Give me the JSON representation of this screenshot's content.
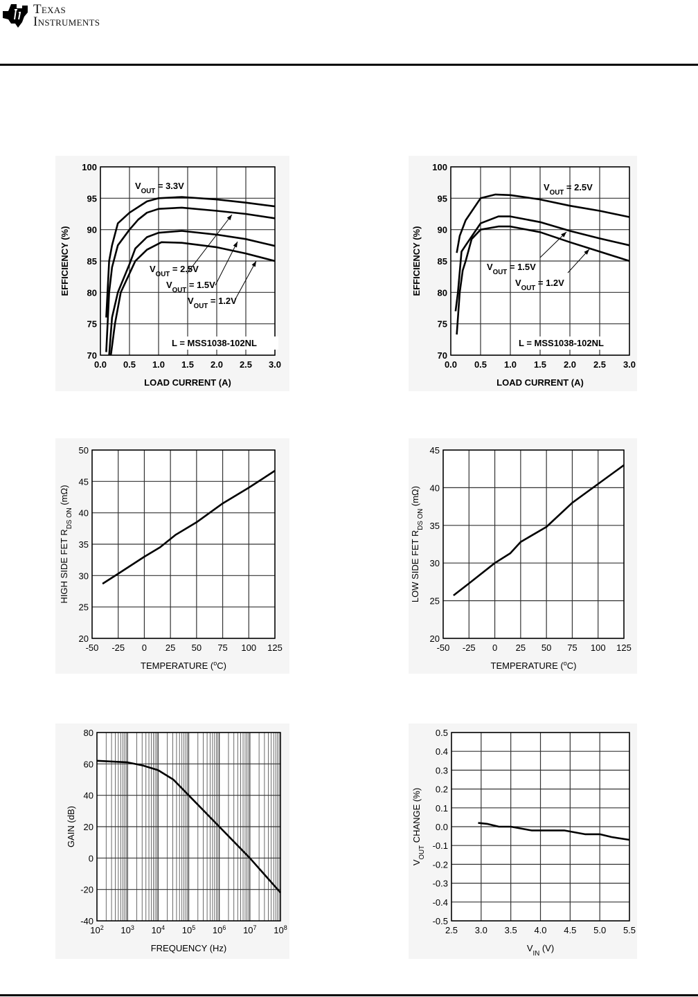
{
  "header": {
    "brand_line1": "Texas",
    "brand_line2": "Instruments"
  },
  "chart_data": [
    {
      "type": "line",
      "xlabel": "LOAD CURRENT (A)",
      "ylabel": "EFFICIENCY (%)",
      "xlim": [
        0,
        3.0
      ],
      "ylim": [
        70,
        100
      ],
      "xticks": [
        "0.0",
        "0.5",
        "1.0",
        "1.5",
        "2.0",
        "2.5",
        "3.0"
      ],
      "yticks": [
        "70",
        "75",
        "80",
        "85",
        "90",
        "95",
        "100"
      ],
      "grid": true,
      "note": "L = MSS1038-102NL",
      "series": [
        {
          "name": "VOUT = 3.3V",
          "label": {
            "v": "V",
            "sub": "OUT",
            "rest": " = 3.3V"
          },
          "x": [
            0.1,
            0.15,
            0.2,
            0.3,
            0.5,
            0.8,
            1.0,
            1.4,
            2.0,
            2.5,
            3.0
          ],
          "y": [
            76,
            85,
            87.5,
            91,
            92.7,
            94.5,
            95,
            95.2,
            94.8,
            94.3,
            93.7
          ]
        },
        {
          "name": "VOUT = 2.5V",
          "label": {
            "v": "V",
            "sub": "OUT",
            "rest": " = 2.5V"
          },
          "x": [
            0.1,
            0.15,
            0.2,
            0.3,
            0.5,
            0.65,
            0.8,
            1.0,
            1.4,
            2.0,
            2.5,
            3.0
          ],
          "y": [
            70.5,
            80,
            84,
            87.5,
            90,
            91.6,
            92.7,
            93.3,
            93.5,
            93,
            92.5,
            91.8
          ]
        },
        {
          "name": "VOUT = 1.5V",
          "label": {
            "v": "V",
            "sub": "OUT",
            "rest": " = 1.5V"
          },
          "x": [
            0.15,
            0.2,
            0.3,
            0.5,
            0.6,
            0.8,
            1.0,
            1.4,
            2.0,
            2.5,
            3.0
          ],
          "y": [
            70,
            76,
            80,
            84.5,
            87,
            88.8,
            89.5,
            89.8,
            89.2,
            88.5,
            87.4
          ]
        },
        {
          "name": "VOUT = 1.2V",
          "label": {
            "v": "V",
            "sub": "OUT",
            "rest": " = 1.2V"
          },
          "x": [
            0.18,
            0.25,
            0.35,
            0.6,
            0.8,
            1.05,
            1.4,
            2.0,
            2.5,
            3.0
          ],
          "y": [
            70,
            75,
            80,
            85,
            86.8,
            88,
            87.9,
            87.2,
            86.2,
            85
          ]
        }
      ]
    },
    {
      "type": "line",
      "xlabel": "LOAD CURRENT (A)",
      "ylabel": "EFFICIENCY (%)",
      "xlim": [
        0,
        3.0
      ],
      "ylim": [
        70,
        100
      ],
      "xticks": [
        "0.0",
        "0.5",
        "1.0",
        "1.5",
        "2.0",
        "2.5",
        "3.0"
      ],
      "yticks": [
        "70",
        "75",
        "80",
        "85",
        "90",
        "95",
        "100"
      ],
      "grid": true,
      "note": "L = MSS1038-102NL",
      "series": [
        {
          "name": "VOUT = 2.5V",
          "label": {
            "v": "V",
            "sub": "OUT",
            "rest": " = 2.5V"
          },
          "x": [
            0.1,
            0.15,
            0.25,
            0.5,
            0.75,
            1.0,
            1.5,
            2.0,
            2.5,
            3.0
          ],
          "y": [
            86.3,
            89,
            91.5,
            95,
            95.6,
            95.5,
            94.8,
            93.8,
            93,
            92
          ]
        },
        {
          "name": "VOUT = 1.5V",
          "label": {
            "v": "V",
            "sub": "OUT",
            "rest": " = 1.5V"
          },
          "x": [
            0.08,
            0.12,
            0.18,
            0.25,
            0.5,
            0.8,
            1.0,
            1.5,
            2.0,
            2.5,
            3.0
          ],
          "y": [
            77,
            80,
            86.5,
            87.5,
            91,
            92.1,
            92.1,
            91.2,
            89.8,
            88.6,
            87.5
          ]
        },
        {
          "name": "VOUT = 1.2V",
          "label": {
            "v": "V",
            "sub": "OUT",
            "rest": " = 1.2V"
          },
          "x": [
            0.1,
            0.15,
            0.2,
            0.25,
            0.35,
            0.5,
            0.8,
            1.0,
            1.5,
            2.0,
            2.5,
            3.0
          ],
          "y": [
            73.3,
            80,
            83.5,
            85,
            88.5,
            90,
            90.5,
            90.5,
            89.6,
            88,
            86.5,
            85
          ]
        }
      ]
    },
    {
      "type": "line",
      "xlabel": {
        "pre": "TEMPERATURE (",
        "sup": "o",
        "post": "C)"
      },
      "ylabel": {
        "pre": "HIGH SIDE FET R",
        "sub": "DS ON",
        "post": " (mΩ)"
      },
      "xlim": [
        -50,
        125
      ],
      "ylim": [
        20,
        50
      ],
      "xticks": [
        "-50",
        "-25",
        "0",
        "25",
        "50",
        "75",
        "100",
        "125"
      ],
      "yticks": [
        "20",
        "25",
        "30",
        "35",
        "40",
        "45",
        "50"
      ],
      "grid": true,
      "series": [
        {
          "name": "High side RDS(on)",
          "x": [
            -40,
            -25,
            0,
            15,
            30,
            50,
            75,
            100,
            125
          ],
          "y": [
            28.7,
            30.3,
            33,
            34.5,
            36.5,
            38.5,
            41.5,
            44,
            46.7
          ]
        }
      ]
    },
    {
      "type": "line",
      "xlabel": {
        "pre": "TEMPERATURE (",
        "sup": "o",
        "post": "C)"
      },
      "ylabel": {
        "pre": "LOW SIDE FET R",
        "sub": "DS ON",
        "post": " (mΩ)"
      },
      "xlim": [
        -50,
        125
      ],
      "ylim": [
        20,
        45
      ],
      "xticks": [
        "-50",
        "-25",
        "0",
        "25",
        "50",
        "75",
        "100",
        "125"
      ],
      "yticks": [
        "20",
        "25",
        "30",
        "35",
        "40",
        "45"
      ],
      "grid": true,
      "series": [
        {
          "name": "Low side RDS(on)",
          "x": [
            -40,
            -25,
            0,
            15,
            25,
            50,
            75,
            100,
            125
          ],
          "y": [
            25.7,
            27.3,
            30,
            31.3,
            32.8,
            34.8,
            38,
            40.5,
            43
          ]
        }
      ]
    },
    {
      "type": "line",
      "xscale": "log",
      "xlabel": "FREQUENCY (Hz)",
      "ylabel": "GAIN (dB)",
      "xlim_log10": [
        2,
        8
      ],
      "ylim": [
        -40,
        80
      ],
      "xticks": [
        {
          "base": "10",
          "exp": "2"
        },
        {
          "base": "10",
          "exp": "3"
        },
        {
          "base": "10",
          "exp": "4"
        },
        {
          "base": "10",
          "exp": "5"
        },
        {
          "base": "10",
          "exp": "6"
        },
        {
          "base": "10",
          "exp": "7"
        },
        {
          "base": "10",
          "exp": "8"
        }
      ],
      "yticks": [
        "-40",
        "-20",
        "0",
        "20",
        "40",
        "60",
        "80"
      ],
      "grid": true,
      "series": [
        {
          "name": "Gain",
          "x_log10": [
            2,
            3,
            3.5,
            4,
            4.5,
            5,
            6,
            7,
            8
          ],
          "y": [
            62,
            61,
            59,
            56,
            50,
            40,
            20,
            0,
            -22
          ]
        }
      ]
    },
    {
      "type": "line",
      "xlabel": {
        "pre": "V",
        "sub": "IN",
        "post": " (V)"
      },
      "ylabel": {
        "pre": "V",
        "sub": "OUT",
        "post": " CHANGE (%)"
      },
      "xlim": [
        2.5,
        5.5
      ],
      "ylim": [
        -0.5,
        0.5
      ],
      "xticks": [
        "2.5",
        "3.0",
        "3.5",
        "4.0",
        "4.5",
        "5.0",
        "5.5"
      ],
      "yticks": [
        "-0.5",
        "-0.4",
        "-0.3",
        "-0.2",
        "-0.1",
        "0.0",
        "0.1",
        "0.2",
        "0.3",
        "0.4",
        "0.5"
      ],
      "grid": true,
      "series": [
        {
          "name": "VOUT change",
          "x": [
            2.95,
            3.1,
            3.3,
            3.5,
            3.85,
            4.0,
            4.4,
            4.75,
            5.0,
            5.2,
            5.5
          ],
          "y": [
            0.02,
            0.015,
            0,
            0,
            -0.02,
            -0.02,
            -0.02,
            -0.04,
            -0.04,
            -0.055,
            -0.07
          ]
        }
      ]
    }
  ]
}
